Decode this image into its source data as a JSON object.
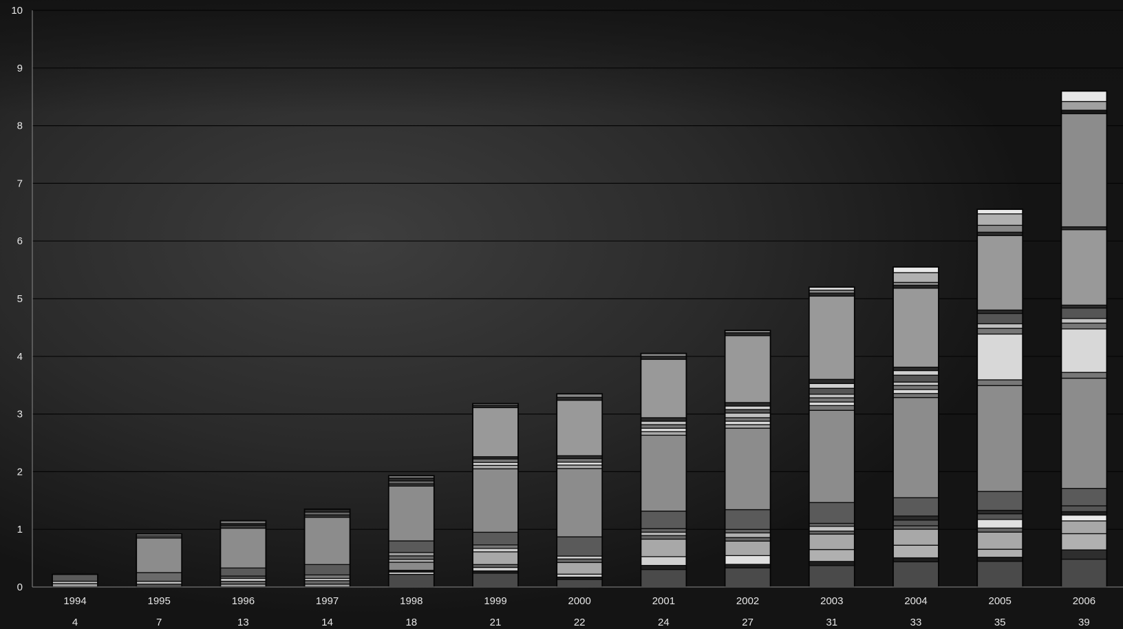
{
  "chart_data": {
    "type": "bar",
    "stacked": true,
    "ylim": [
      0,
      10
    ],
    "yticks": [
      "0",
      "1",
      "2",
      "3",
      "4",
      "5",
      "6",
      "7",
      "8",
      "9",
      "10"
    ],
    "grid": true,
    "categories": [
      "1994",
      "1995",
      "1996",
      "1997",
      "1998",
      "1999",
      "2000",
      "2001",
      "2002",
      "2003",
      "2004",
      "2005",
      "2006"
    ],
    "sublabels": [
      "4",
      "7",
      "13",
      "14",
      "18",
      "21",
      "22",
      "24",
      "27",
      "31",
      "33",
      "35",
      "39"
    ],
    "totals": [
      0.22,
      0.92,
      1.15,
      1.35,
      1.93,
      3.18,
      3.35,
      4.05,
      4.45,
      5.2,
      5.55,
      6.55,
      8.6
    ],
    "stacks": [
      [
        [
          0.06,
          "#9a9a9a"
        ],
        [
          0.04,
          "#cfcfcf"
        ],
        [
          0.12,
          "#5a5a5a"
        ]
      ],
      [
        [
          0.05,
          "#555555"
        ],
        [
          0.05,
          "#bdbdbd"
        ],
        [
          0.15,
          "#6a6a6a"
        ],
        [
          0.6,
          "#8c8c8c"
        ],
        [
          0.04,
          "#4a4a4a"
        ],
        [
          0.03,
          "#cccccc"
        ]
      ],
      [
        [
          0.05,
          "#9c9c9c"
        ],
        [
          0.05,
          "#6e6e6e"
        ],
        [
          0.05,
          "#c8c8c8"
        ],
        [
          0.04,
          "#5c5c5c"
        ],
        [
          0.14,
          "#5a5a5a"
        ],
        [
          0.69,
          "#8c8c8c"
        ],
        [
          0.05,
          "#3a3a3a"
        ],
        [
          0.03,
          "#2a2a2a"
        ],
        [
          0.05,
          "#777777"
        ]
      ],
      [
        [
          0.05,
          "#a0a0a0"
        ],
        [
          0.06,
          "#6a6a6a"
        ],
        [
          0.04,
          "#cccccc"
        ],
        [
          0.06,
          "#777777"
        ],
        [
          0.18,
          "#5a5a5a"
        ],
        [
          0.82,
          "#8c8c8c"
        ],
        [
          0.04,
          "#3a3a3a"
        ],
        [
          0.05,
          "#666666"
        ],
        [
          0.05,
          "#2a2a2a"
        ]
      ],
      [
        [
          0.22,
          "#4a4a4a"
        ],
        [
          0.04,
          "#cccccc"
        ],
        [
          0.03,
          "#1e1e1e"
        ],
        [
          0.14,
          "#8a8a8a"
        ],
        [
          0.05,
          "#b0b0b0"
        ],
        [
          0.06,
          "#6a6a6a"
        ],
        [
          0.06,
          "#9a9a9a"
        ],
        [
          0.2,
          "#5a5a5a"
        ],
        [
          0.95,
          "#8c8c8c"
        ],
        [
          0.04,
          "#3a3a3a"
        ],
        [
          0.05,
          "#666666"
        ],
        [
          0.05,
          "#2a2a2a"
        ],
        [
          0.04,
          "#888888"
        ]
      ],
      [
        [
          0.24,
          "#4a4a4a"
        ],
        [
          0.04,
          "#1e1e1e"
        ],
        [
          0.06,
          "#d0d0d0"
        ],
        [
          0.05,
          "#666666"
        ],
        [
          0.22,
          "#a8a8a8"
        ],
        [
          0.06,
          "#cccccc"
        ],
        [
          0.06,
          "#777777"
        ],
        [
          0.22,
          "#5a5a5a"
        ],
        [
          1.1,
          "#8c8c8c"
        ],
        [
          0.06,
          "#aaaaaa"
        ],
        [
          0.05,
          "#e0e0e0"
        ],
        [
          0.06,
          "#777777"
        ],
        [
          0.04,
          "#2a2a2a"
        ],
        [
          0.85,
          "#999999"
        ],
        [
          0.04,
          "#2a2a2a"
        ],
        [
          0.03,
          "#888888"
        ]
      ],
      [
        [
          0.13,
          "#4a4a4a"
        ],
        [
          0.04,
          "#1e1e1e"
        ],
        [
          0.05,
          "#cccccc"
        ],
        [
          0.2,
          "#a8a8a8"
        ],
        [
          0.06,
          "#666666"
        ],
        [
          0.05,
          "#cccccc"
        ],
        [
          0.33,
          "#5a5a5a"
        ],
        [
          1.17,
          "#8c8c8c"
        ],
        [
          0.06,
          "#aaaaaa"
        ],
        [
          0.05,
          "#e0e0e0"
        ],
        [
          0.06,
          "#777777"
        ],
        [
          0.05,
          "#2a2a2a"
        ],
        [
          0.95,
          "#999999"
        ],
        [
          0.05,
          "#2a2a2a"
        ],
        [
          0.06,
          "#888888"
        ]
      ],
      [
        [
          0.3,
          "#4a4a4a"
        ],
        [
          0.07,
          "#1e1e1e"
        ],
        [
          0.15,
          "#d0d0d0"
        ],
        [
          0.3,
          "#a8a8a8"
        ],
        [
          0.06,
          "#666666"
        ],
        [
          0.06,
          "#b0b0b0"
        ],
        [
          0.06,
          "#666666"
        ],
        [
          0.3,
          "#5a5a5a"
        ],
        [
          1.3,
          "#8c8c8c"
        ],
        [
          0.06,
          "#aaaaaa"
        ],
        [
          0.06,
          "#d8d8d8"
        ],
        [
          0.06,
          "#777777"
        ],
        [
          0.06,
          "#c0c0c0"
        ],
        [
          0.06,
          "#2a2a2a"
        ],
        [
          1.0,
          "#999999"
        ],
        [
          0.05,
          "#2a2a2a"
        ],
        [
          0.05,
          "#888888"
        ]
      ],
      [
        [
          0.33,
          "#4a4a4a"
        ],
        [
          0.06,
          "#1e1e1e"
        ],
        [
          0.15,
          "#e0e0e0"
        ],
        [
          0.25,
          "#a8a8a8"
        ],
        [
          0.06,
          "#666666"
        ],
        [
          0.08,
          "#b0b0b0"
        ],
        [
          0.06,
          "#666666"
        ],
        [
          0.34,
          "#5a5a5a"
        ],
        [
          1.4,
          "#8c8c8c"
        ],
        [
          0.06,
          "#aaaaaa"
        ],
        [
          0.06,
          "#d8d8d8"
        ],
        [
          0.06,
          "#777777"
        ],
        [
          0.08,
          "#c0c0c0"
        ],
        [
          0.06,
          "#555555"
        ],
        [
          0.06,
          "#d0d0d0"
        ],
        [
          0.06,
          "#2a2a2a"
        ],
        [
          1.15,
          "#999999"
        ],
        [
          0.05,
          "#2a2a2a"
        ],
        [
          0.04,
          "#888888"
        ]
      ],
      [
        [
          0.36,
          "#4a4a4a"
        ],
        [
          0.07,
          "#1e1e1e"
        ],
        [
          0.2,
          "#b0b0b0"
        ],
        [
          0.26,
          "#a8a8a8"
        ],
        [
          0.05,
          "#666666"
        ],
        [
          0.08,
          "#c0c0c0"
        ],
        [
          0.05,
          "#666666"
        ],
        [
          0.35,
          "#5a5a5a"
        ],
        [
          1.55,
          "#8c8c8c"
        ],
        [
          0.08,
          "#777777"
        ],
        [
          0.06,
          "#d8d8d8"
        ],
        [
          0.07,
          "#777777"
        ],
        [
          0.06,
          "#c0c0c0"
        ],
        [
          0.1,
          "#555555"
        ],
        [
          0.08,
          "#d0d0d0"
        ],
        [
          0.07,
          "#2a2a2a"
        ],
        [
          1.4,
          "#999999"
        ],
        [
          0.05,
          "#2a2a2a"
        ],
        [
          0.05,
          "#888888"
        ],
        [
          0.05,
          "#e0e0e0"
        ]
      ],
      [
        [
          0.44,
          "#4a4a4a"
        ],
        [
          0.07,
          "#1e1e1e"
        ],
        [
          0.22,
          "#b0b0b0"
        ],
        [
          0.28,
          "#a8a8a8"
        ],
        [
          0.06,
          "#666666"
        ],
        [
          0.1,
          "#555555"
        ],
        [
          0.07,
          "#2a2a2a"
        ],
        [
          0.32,
          "#5a5a5a"
        ],
        [
          1.75,
          "#8c8c8c"
        ],
        [
          0.07,
          "#777777"
        ],
        [
          0.07,
          "#d8d8d8"
        ],
        [
          0.07,
          "#777777"
        ],
        [
          0.06,
          "#c0c0c0"
        ],
        [
          0.12,
          "#555555"
        ],
        [
          0.08,
          "#d0d0d0"
        ],
        [
          0.06,
          "#2a2a2a"
        ],
        [
          1.38,
          "#999999"
        ],
        [
          0.05,
          "#2a2a2a"
        ],
        [
          0.05,
          "#888888"
        ],
        [
          0.17,
          "#b0b0b0"
        ],
        [
          0.1,
          "#e8e8e8"
        ]
      ],
      [
        [
          0.45,
          "#4a4a4a"
        ],
        [
          0.07,
          "#1e1e1e"
        ],
        [
          0.14,
          "#b0b0b0"
        ],
        [
          0.3,
          "#a8a8a8"
        ],
        [
          0.07,
          "#666666"
        ],
        [
          0.15,
          "#e0e0e0"
        ],
        [
          0.1,
          "#555555"
        ],
        [
          0.06,
          "#2a2a2a"
        ],
        [
          0.33,
          "#5a5a5a"
        ],
        [
          1.85,
          "#8c8c8c"
        ],
        [
          0.1,
          "#777777"
        ],
        [
          0.8,
          "#d8d8d8"
        ],
        [
          0.1,
          "#777777"
        ],
        [
          0.08,
          "#c0c0c0"
        ],
        [
          0.18,
          "#555555"
        ],
        [
          0.06,
          "#2a2a2a"
        ],
        [
          1.3,
          "#999999"
        ],
        [
          0.06,
          "#2a2a2a"
        ],
        [
          0.12,
          "#888888"
        ],
        [
          0.2,
          "#b0b0b0"
        ],
        [
          0.08,
          "#e8e8e8"
        ]
      ],
      [
        [
          0.48,
          "#4a4a4a"
        ],
        [
          0.16,
          "#2e2e2e"
        ],
        [
          0.28,
          "#b0b0b0"
        ],
        [
          0.22,
          "#a8a8a8"
        ],
        [
          0.1,
          "#e8e8e8"
        ],
        [
          0.06,
          "#1e1e1e"
        ],
        [
          0.1,
          "#555555"
        ],
        [
          0.3,
          "#5a5a5a"
        ],
        [
          1.9,
          "#8c8c8c"
        ],
        [
          0.1,
          "#777777"
        ],
        [
          0.75,
          "#d8d8d8"
        ],
        [
          0.1,
          "#777777"
        ],
        [
          0.08,
          "#c0c0c0"
        ],
        [
          0.18,
          "#555555"
        ],
        [
          0.05,
          "#2a2a2a"
        ],
        [
          1.3,
          "#999999"
        ],
        [
          0.05,
          "#2a2a2a"
        ],
        [
          1.95,
          "#8c8c8c"
        ],
        [
          0.06,
          "#1a1a1a"
        ],
        [
          0.15,
          "#a0a0a0"
        ],
        [
          0.18,
          "#e8e8e8"
        ]
      ]
    ]
  }
}
